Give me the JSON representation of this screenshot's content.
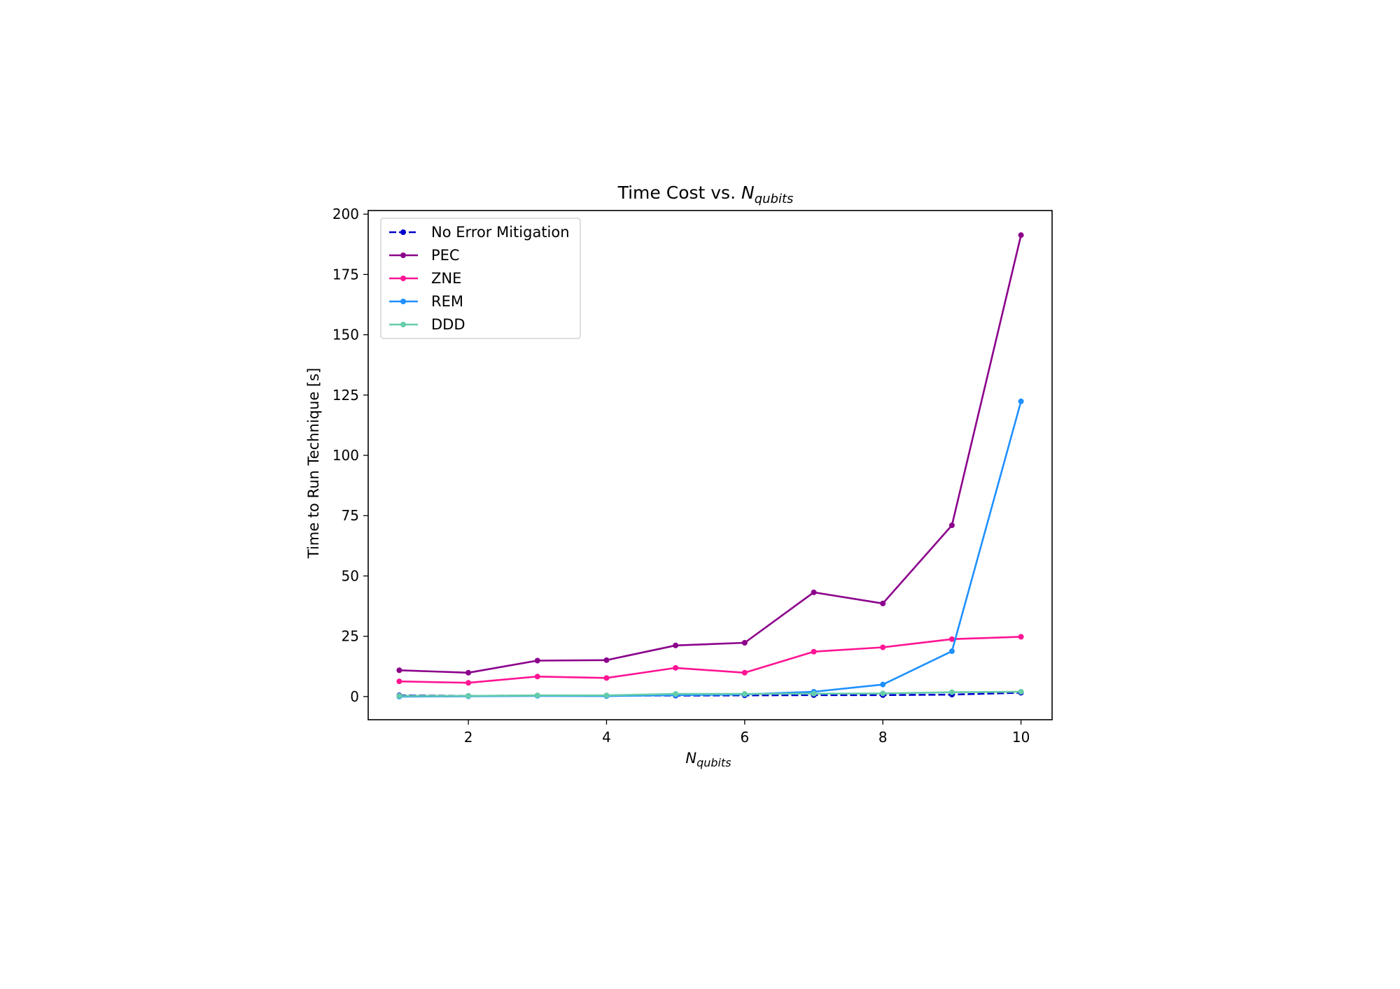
{
  "chart_data": {
    "type": "line",
    "title": {
      "main": "Time Cost vs. ",
      "sym": "N",
      "sub": "qubits"
    },
    "xlabel": {
      "sym": "N",
      "sub": "qubits"
    },
    "ylabel": "Time to Run Technique [s]",
    "x": [
      1,
      2,
      3,
      4,
      5,
      6,
      7,
      8,
      9,
      10
    ],
    "xlim": [
      0.55,
      10.45
    ],
    "ylim": [
      -9.6,
      201.5
    ],
    "xticks": [
      2,
      4,
      6,
      8,
      10
    ],
    "yticks": [
      0,
      25,
      50,
      75,
      100,
      125,
      150,
      175,
      200
    ],
    "grid": false,
    "legend_position": "upper left",
    "series": [
      {
        "name": "No Error Mitigation",
        "color": "#0000cd",
        "dash": true,
        "values": [
          0.5,
          0.3,
          0.4,
          0.4,
          0.4,
          0.5,
          0.6,
          0.6,
          0.8,
          1.6
        ]
      },
      {
        "name": "PEC",
        "color": "#8b008b",
        "dash": false,
        "values": [
          10.9,
          9.9,
          14.9,
          15.1,
          21.2,
          22.3,
          43.2,
          38.6,
          71.0,
          191.3
        ]
      },
      {
        "name": "ZNE",
        "color": "#ff1493",
        "dash": false,
        "values": [
          6.3,
          5.7,
          8.3,
          7.7,
          11.9,
          9.9,
          18.6,
          20.4,
          23.8,
          24.8
        ]
      },
      {
        "name": "REM",
        "color": "#1e90ff",
        "dash": false,
        "values": [
          0.0,
          0.1,
          0.3,
          0.2,
          0.6,
          0.9,
          2.0,
          5.0,
          18.8,
          122.4
        ]
      },
      {
        "name": "DDD",
        "color": "#66cdaa",
        "dash": false,
        "values": [
          0.3,
          0.3,
          0.5,
          0.5,
          1.1,
          1.1,
          1.2,
          1.3,
          1.8,
          2.0
        ]
      }
    ]
  }
}
